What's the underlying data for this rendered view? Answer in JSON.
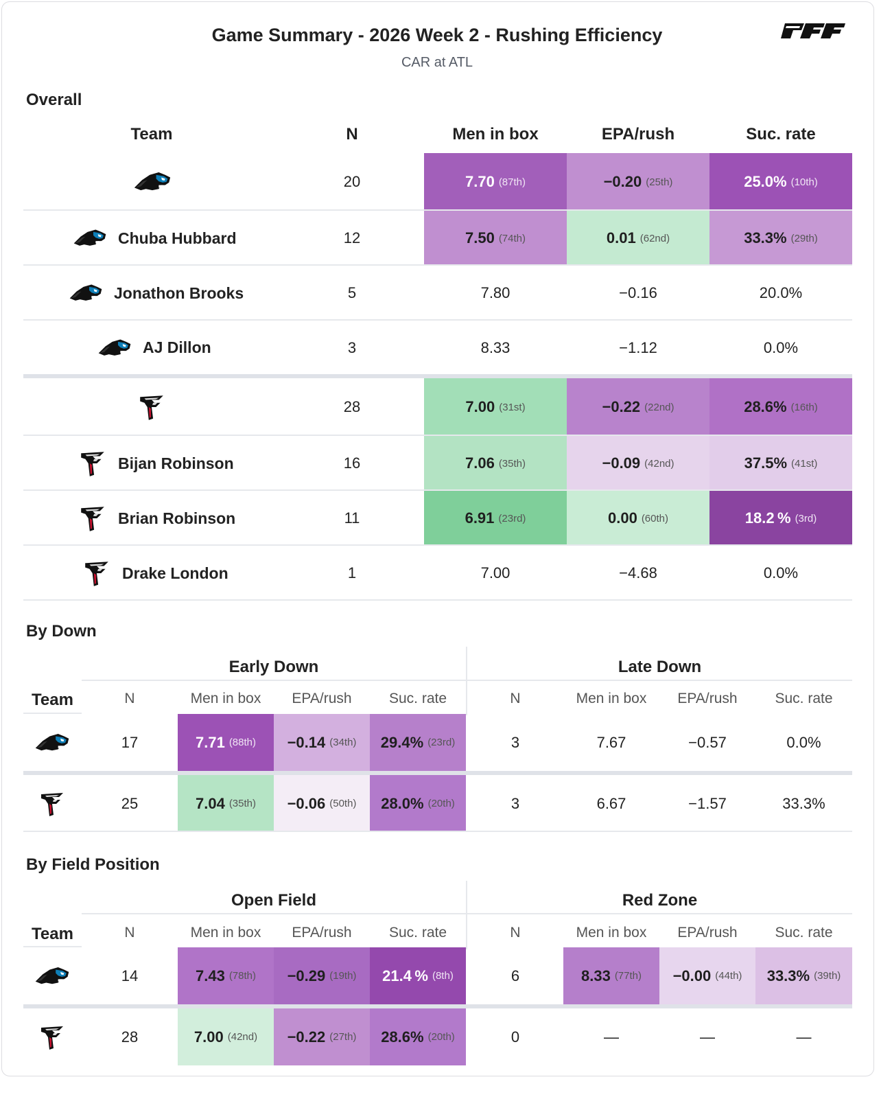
{
  "header": {
    "title": "Game Summary - 2026 Week 2 - Rushing Efficiency",
    "subtitle": "CAR at ATL",
    "brand": "PFF"
  },
  "colors": {
    "purple_dark": "#8a44a0",
    "purple_mid": "#a25fba",
    "purple_light": "#c08fd0",
    "purple_pale": "#e6d4ec",
    "green_dark": "#7fcf9a",
    "green_mid": "#a2deb7",
    "green_light": "#c4ead1"
  },
  "overall": {
    "section_title": "Overall",
    "columns": [
      "Team",
      "N",
      "Men in box",
      "EPA/rush",
      "Suc. rate"
    ],
    "rows": [
      {
        "icon": "panthers-logo-icon",
        "name": "",
        "n": "20",
        "box": "7.70",
        "box_rk": "(87th)",
        "epa": "−0.20",
        "epa_rk": "(25th)",
        "suc": "25.0%",
        "suc_rk": "(10th)"
      },
      {
        "icon": "panthers-logo-icon",
        "name": "Chuba Hubbard",
        "n": "12",
        "box": "7.50",
        "box_rk": "(74th)",
        "epa": "0.01",
        "epa_rk": "(62nd)",
        "suc": "33.3%",
        "suc_rk": "(29th)"
      },
      {
        "icon": "panthers-logo-icon",
        "name": "Jonathon Brooks",
        "n": "5",
        "box": "7.80",
        "box_rk": "",
        "epa": "−0.16",
        "epa_rk": "",
        "suc": "20.0%",
        "suc_rk": ""
      },
      {
        "icon": "panthers-logo-icon",
        "name": "AJ Dillon",
        "n": "3",
        "box": "8.33",
        "box_rk": "",
        "epa": "−1.12",
        "epa_rk": "",
        "suc": "0.0%",
        "suc_rk": ""
      },
      {
        "icon": "falcons-logo-icon",
        "name": "",
        "n": "28",
        "box": "7.00",
        "box_rk": "(31st)",
        "epa": "−0.22",
        "epa_rk": "(22nd)",
        "suc": "28.6%",
        "suc_rk": "(16th)"
      },
      {
        "icon": "falcons-logo-icon",
        "name": "Bijan Robinson",
        "n": "16",
        "box": "7.06",
        "box_rk": "(35th)",
        "epa": "−0.09",
        "epa_rk": "(42nd)",
        "suc": "37.5%",
        "suc_rk": "(41st)"
      },
      {
        "icon": "falcons-logo-icon",
        "name": "Brian Robinson",
        "n": "11",
        "box": "6.91",
        "box_rk": "(23rd)",
        "epa": "0.00",
        "epa_rk": "(60th)",
        "suc": "18.2 %",
        "suc_rk": "(3rd)"
      },
      {
        "icon": "falcons-logo-icon",
        "name": "Drake London",
        "n": "1",
        "box": "7.00",
        "box_rk": "",
        "epa": "−4.68",
        "epa_rk": "",
        "suc": "0.0%",
        "suc_rk": ""
      }
    ]
  },
  "by_down": {
    "section_title": "By Down",
    "team_label": "Team",
    "group_left": "Early Down",
    "group_right": "Late Down",
    "subcolumns": [
      "N",
      "Men in box",
      "EPA/rush",
      "Suc. rate"
    ],
    "rows": [
      {
        "icon": "panthers-logo-icon",
        "left": {
          "n": "17",
          "box": "7.71",
          "box_rk": "(88th)",
          "epa": "−0.14",
          "epa_rk": "(34th)",
          "suc": "29.4%",
          "suc_rk": "(23rd)"
        },
        "right": {
          "n": "3",
          "box": "7.67",
          "epa": "−0.57",
          "suc": "0.0%"
        }
      },
      {
        "icon": "falcons-logo-icon",
        "left": {
          "n": "25",
          "box": "7.04",
          "box_rk": "(35th)",
          "epa": "−0.06",
          "epa_rk": "(50th)",
          "suc": "28.0%",
          "suc_rk": "(20th)"
        },
        "right": {
          "n": "3",
          "box": "6.67",
          "epa": "−1.57",
          "suc": "33.3%"
        }
      }
    ]
  },
  "by_field": {
    "section_title": "By Field Position",
    "team_label": "Team",
    "group_left": "Open Field",
    "group_right": "Red Zone",
    "subcolumns": [
      "N",
      "Men in box",
      "EPA/rush",
      "Suc. rate"
    ],
    "rows": [
      {
        "icon": "panthers-logo-icon",
        "left": {
          "n": "14",
          "box": "7.43",
          "box_rk": "(78th)",
          "epa": "−0.29",
          "epa_rk": "(19th)",
          "suc": "21.4 %",
          "suc_rk": "(8th)"
        },
        "right": {
          "n": "6",
          "box": "8.33",
          "box_rk": "(77th)",
          "epa": "−0.00",
          "epa_rk": "(44th)",
          "suc": "33.3%",
          "suc_rk": "(39th)"
        }
      },
      {
        "icon": "falcons-logo-icon",
        "left": {
          "n": "28",
          "box": "7.00",
          "box_rk": "(42nd)",
          "epa": "−0.22",
          "epa_rk": "(27th)",
          "suc": "28.6%",
          "suc_rk": "(20th)"
        },
        "right": {
          "n": "0",
          "box": "—",
          "epa": "—",
          "suc": "—"
        }
      }
    ]
  }
}
